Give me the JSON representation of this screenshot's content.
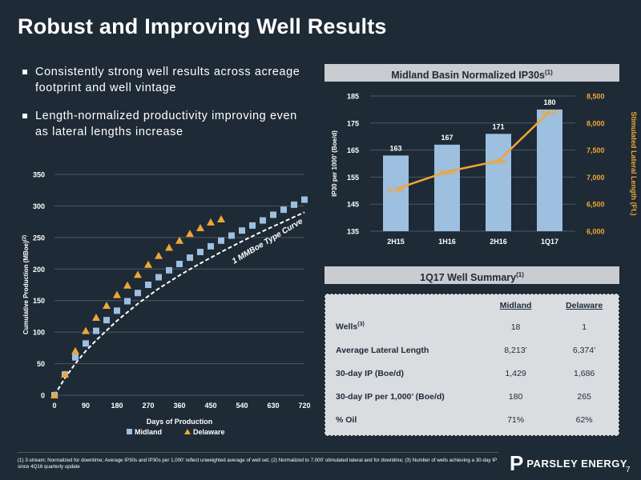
{
  "title": "Robust and Improving Well Results",
  "bullets": [
    "Consistently strong well results across acreage footprint and well vintage",
    "Length-normalized productivity improving even as lateral lengths increase"
  ],
  "colors": {
    "background": "#1e2a36",
    "midland": "#9dbfe0",
    "delaware": "#f0a636",
    "panel": "#c9ccd0"
  },
  "bar_panel": {
    "title": "Midland Basin Normalized IP30s",
    "title_sup": "(1)"
  },
  "summary_panel": {
    "title": "1Q17 Well Summary",
    "title_sup": "(1)",
    "headers": [
      "Midland",
      "Delaware"
    ],
    "rows": [
      {
        "label": "Wells",
        "sup": "(3)",
        "midland": "18",
        "delaware": "1"
      },
      {
        "label": "Average Lateral Length",
        "sup": "",
        "midland": "8,213’",
        "delaware": "6,374’"
      },
      {
        "label": "30-day IP (Boe/d)",
        "sup": "",
        "midland": "1,429",
        "delaware": "1,686"
      },
      {
        "label": "30-day IP per 1,000’ (Boe/d)",
        "sup": "",
        "midland": "180",
        "delaware": "265"
      },
      {
        "label": "% Oil",
        "sup": "",
        "midland": "71%",
        "delaware": "62%"
      }
    ]
  },
  "footnote": "(1) 3-stream; Normalized for downtime; Average IP30s and IP30s per 1,000’ reflect unweighted average of well set; (2) Normalized to 7,000’ stimulated lateral and for downtime; (3) Number of wells achieving a 30-day IP since 4Q16 quarterly update",
  "logo": {
    "mark": "P",
    "name": "PARSLEY ENERGY"
  },
  "page_number": "7",
  "chart_data": [
    {
      "type": "scatter",
      "xlabel": "Days of Production",
      "ylabel": "Cumulative Production (MBoe)",
      "ylabel_sup": "(2)",
      "xlim": [
        0,
        720
      ],
      "ylim": [
        0,
        350
      ],
      "xticks": [
        0,
        90,
        180,
        270,
        360,
        450,
        540,
        630,
        720
      ],
      "yticks": [
        0,
        50,
        100,
        150,
        200,
        250,
        300,
        350
      ],
      "legend_position": "bottom",
      "series": [
        {
          "name": "Midland",
          "marker": "square",
          "x": [
            0,
            30,
            60,
            90,
            120,
            150,
            180,
            210,
            240,
            270,
            300,
            330,
            360,
            390,
            420,
            450,
            480,
            510,
            540,
            570,
            600,
            630,
            660,
            690,
            720
          ],
          "y": [
            0,
            33,
            60,
            82,
            102,
            119,
            134,
            149,
            162,
            175,
            187,
            198,
            208,
            218,
            227,
            236,
            245,
            253,
            261,
            269,
            277,
            286,
            294,
            302,
            310
          ]
        },
        {
          "name": "Delaware",
          "marker": "triangle",
          "x": [
            0,
            30,
            60,
            90,
            120,
            150,
            180,
            210,
            240,
            270,
            300,
            330,
            360,
            390,
            420,
            450,
            480
          ],
          "y": [
            0,
            33,
            70,
            102,
            123,
            142,
            159,
            174,
            191,
            207,
            221,
            234,
            245,
            256,
            265,
            274,
            279
          ]
        }
      ],
      "curve": {
        "label": "1 MMBoe Type Curve",
        "style": "dashed",
        "x": [
          0,
          30,
          60,
          90,
          120,
          180,
          240,
          300,
          360,
          420,
          480,
          540,
          600,
          660,
          720
        ],
        "y": [
          0,
          27,
          50,
          70,
          87,
          118,
          145,
          169,
          190,
          209,
          227,
          244,
          260,
          275,
          290
        ]
      }
    },
    {
      "type": "bar",
      "title": "Midland Basin Normalized IP30s",
      "categories": [
        "2H15",
        "1H16",
        "2H16",
        "1Q17"
      ],
      "ylabel": "IP30 per 1000’ (Boe/d)",
      "ylim": [
        135,
        185
      ],
      "yticks": [
        135,
        145,
        155,
        165,
        175,
        185
      ],
      "y2label": "Stimulated Lateral Length (Ft.)",
      "y2lim": [
        6000,
        8500
      ],
      "y2ticks": [
        "6,000",
        "6,500",
        "7,000",
        "7,500",
        "8,000",
        "8,500"
      ],
      "series": [
        {
          "name": "IP30 per 1000’",
          "axis": "left",
          "values": [
            163,
            167,
            171,
            180
          ],
          "labels": [
            "163",
            "167",
            "171",
            "180"
          ]
        },
        {
          "name": "Stimulated Lateral Length",
          "axis": "right",
          "type": "line",
          "values": [
            6780,
            7100,
            7300,
            8213
          ],
          "labels": [
            "6,780",
            "7,100",
            "7,300",
            "8,213"
          ]
        }
      ]
    }
  ]
}
